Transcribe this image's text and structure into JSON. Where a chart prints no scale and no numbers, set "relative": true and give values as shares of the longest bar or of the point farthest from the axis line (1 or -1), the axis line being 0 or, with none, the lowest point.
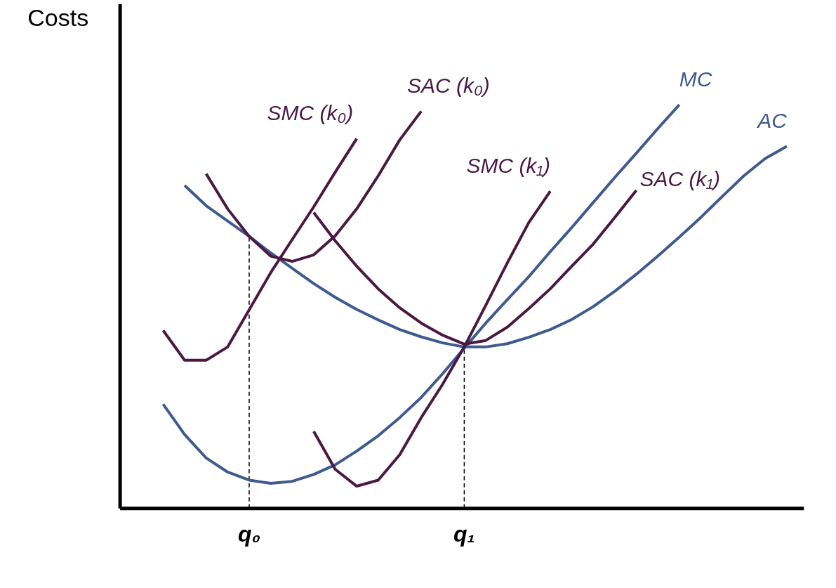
{
  "chart_data": {
    "type": "line",
    "relative": true,
    "ylabel": "Costs",
    "grid": false,
    "legend": false,
    "marker": "none",
    "line_style": "solid",
    "tick_labels": "x",
    "categories": [
      null,
      null,
      null,
      null,
      null,
      "q₀",
      null,
      null,
      null,
      null,
      null,
      null,
      null,
      null,
      null,
      "q₁",
      null,
      null,
      null,
      null,
      null,
      null,
      null,
      null,
      null,
      null,
      null,
      null,
      null,
      null,
      null
    ],
    "ref_lines": [
      {
        "axis": "x",
        "value": "q₀",
        "color": "#000000",
        "line_style": "dashed"
      },
      {
        "axis": "x",
        "value": "q₁",
        "color": "#000000",
        "line_style": "dashed"
      }
    ],
    "series": [
      {
        "name": "AC",
        "color": "#3f5a8e",
        "values": [
          null,
          null,
          0.8,
          0.75,
          0.712,
          0.674,
          0.633,
          0.595,
          0.557,
          0.523,
          0.493,
          0.467,
          0.443,
          0.425,
          0.41,
          0.4,
          0.4,
          0.408,
          0.424,
          0.443,
          0.468,
          0.5,
          0.538,
          0.58,
          0.625,
          0.672,
          0.721,
          0.773,
          0.824,
          0.867,
          0.897
        ]
      },
      {
        "name": "MC",
        "color": "#3f5a8e",
        "values": [
          null,
          0.258,
          0.183,
          0.125,
          0.09,
          0.07,
          0.062,
          0.067,
          0.084,
          0.108,
          0.142,
          0.18,
          0.225,
          0.275,
          0.334,
          0.397,
          0.459,
          0.517,
          0.574,
          0.636,
          0.696,
          0.758,
          0.82,
          0.88,
          0.941,
          1,
          null,
          null,
          null,
          null,
          null
        ]
      },
      {
        "name": "SMC (k₀)",
        "color": "#4a1942",
        "values": [
          null,
          0.441,
          0.367,
          0.367,
          0.4,
          0.492,
          0.584,
          0.666,
          0.747,
          0.833,
          0.916,
          null,
          null,
          null,
          null,
          null,
          null,
          null,
          null,
          null,
          null,
          null,
          null,
          null,
          null,
          null,
          null,
          null,
          null,
          null,
          null
        ]
      },
      {
        "name": "SAC (k₀)",
        "color": "#4a1942",
        "values": [
          null,
          null,
          null,
          0.829,
          0.742,
          0.674,
          0.625,
          0.612,
          0.628,
          0.675,
          0.742,
          0.824,
          0.913,
          0.984,
          null,
          null,
          null,
          null,
          null,
          null,
          null,
          null,
          null,
          null,
          null,
          null,
          null,
          null,
          null,
          null,
          null
        ]
      },
      {
        "name": "SMC (k₁)",
        "color": "#4a1942",
        "values": [
          null,
          null,
          null,
          null,
          null,
          null,
          null,
          null,
          0.191,
          0.097,
          0.055,
          0.07,
          0.133,
          0.225,
          0.308,
          0.4,
          0.503,
          0.608,
          0.708,
          0.786,
          null,
          null,
          null,
          null,
          null,
          null,
          null,
          null,
          null,
          null,
          null
        ]
      },
      {
        "name": "SAC (k₁)",
        "color": "#4a1942",
        "values": [
          null,
          null,
          null,
          null,
          null,
          null,
          null,
          null,
          0.733,
          0.663,
          0.6,
          0.544,
          0.497,
          0.459,
          0.429,
          0.407,
          0.416,
          0.449,
          0.495,
          0.544,
          0.6,
          0.655,
          0.721,
          0.788,
          null,
          null,
          null,
          null,
          null,
          null,
          null
        ]
      }
    ]
  }
}
